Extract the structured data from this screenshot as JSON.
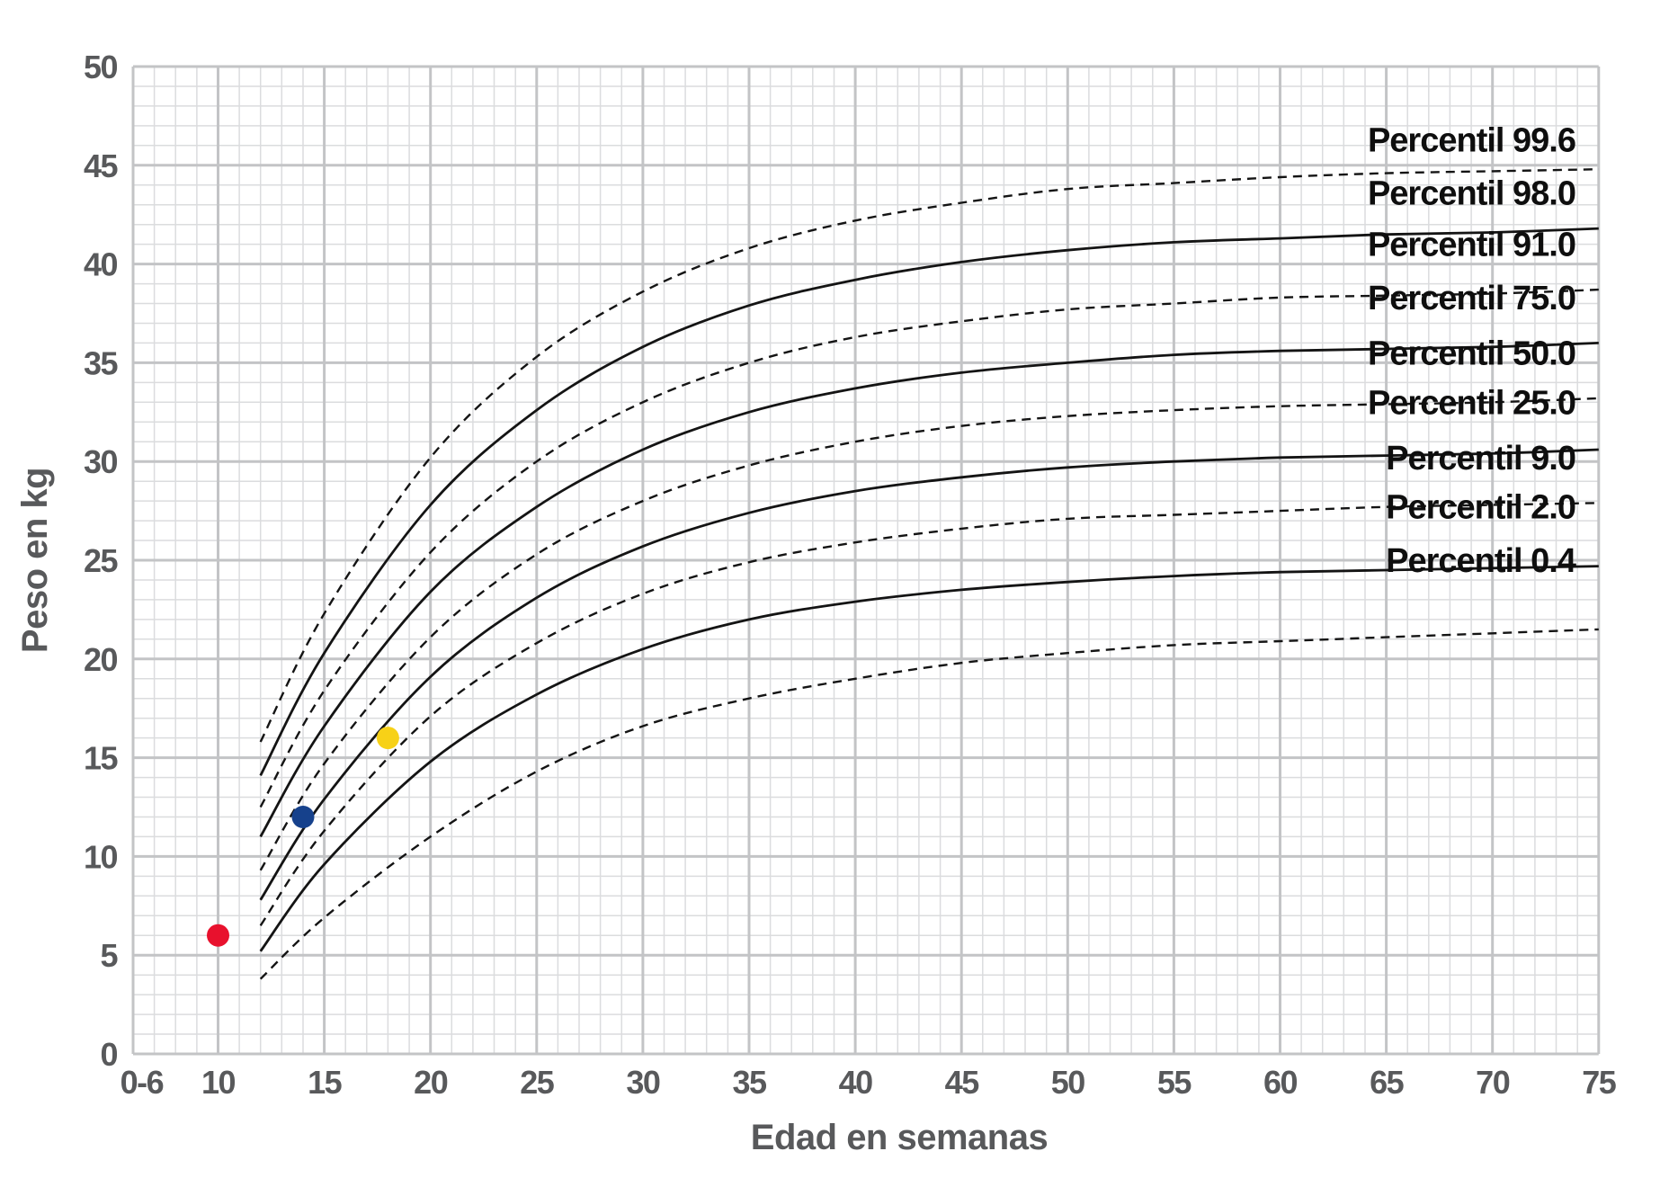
{
  "chart_data": {
    "type": "line",
    "title": "",
    "xlabel": "Edad en semanas",
    "ylabel": "Peso en kg",
    "xlim": [
      6,
      75
    ],
    "ylim": [
      0,
      50
    ],
    "grid": {
      "minor_step_weeks": 1,
      "minor_step_kg": 1,
      "major_step_weeks": 5,
      "major_step_kg": 5
    },
    "x_ticks": {
      "positions": [
        6.4,
        10,
        15,
        20,
        25,
        30,
        35,
        40,
        45,
        50,
        55,
        60,
        65,
        70,
        75
      ],
      "labels": [
        "0-6",
        "10",
        "15",
        "20",
        "25",
        "30",
        "35",
        "40",
        "45",
        "50",
        "55",
        "60",
        "65",
        "70",
        "75"
      ]
    },
    "y_ticks": [
      0,
      5,
      10,
      15,
      20,
      25,
      30,
      35,
      40,
      45,
      50
    ],
    "weeks": [
      12,
      15,
      20,
      25,
      30,
      35,
      40,
      45,
      50,
      55,
      60,
      65,
      70,
      75
    ],
    "series": [
      {
        "name": "Percentil 99.6",
        "percentile": 99.6,
        "line_style": "dashed",
        "label_y_kg": 46.3,
        "values": [
          15.8,
          22.3,
          30.2,
          35.3,
          38.6,
          40.8,
          42.2,
          43.1,
          43.8,
          44.1,
          44.4,
          44.6,
          44.7,
          44.8
        ]
      },
      {
        "name": "Percentil 98.0",
        "percentile": 98.0,
        "line_style": "solid",
        "label_y_kg": 43.6,
        "values": [
          14.1,
          20.3,
          27.8,
          32.6,
          35.8,
          37.9,
          39.2,
          40.1,
          40.7,
          41.1,
          41.3,
          41.5,
          41.6,
          41.8
        ]
      },
      {
        "name": "Percentil 91.0",
        "percentile": 91.0,
        "line_style": "dashed",
        "label_y_kg": 41.0,
        "values": [
          12.5,
          18.4,
          25.4,
          30.0,
          33.0,
          35.0,
          36.3,
          37.1,
          37.7,
          38.0,
          38.3,
          38.4,
          38.5,
          38.7
        ]
      },
      {
        "name": "Percentil 75.0",
        "percentile": 75.0,
        "line_style": "solid",
        "label_y_kg": 38.3,
        "values": [
          11.0,
          16.6,
          23.4,
          27.7,
          30.6,
          32.5,
          33.7,
          34.5,
          35.0,
          35.4,
          35.6,
          35.7,
          35.8,
          36.0
        ]
      },
      {
        "name": "Percentil 50.0",
        "percentile": 50.0,
        "line_style": "dashed",
        "label_y_kg": 35.5,
        "values": [
          9.3,
          14.7,
          21.1,
          25.3,
          28.0,
          29.8,
          31.0,
          31.8,
          32.3,
          32.6,
          32.8,
          32.9,
          33.0,
          33.2
        ]
      },
      {
        "name": "Percentil 25.0",
        "percentile": 25.0,
        "line_style": "solid",
        "label_y_kg": 33.0,
        "values": [
          7.8,
          12.9,
          19.1,
          23.1,
          25.7,
          27.4,
          28.5,
          29.2,
          29.7,
          30.0,
          30.2,
          30.3,
          30.4,
          30.6
        ]
      },
      {
        "name": "Percentil 9.0",
        "percentile": 9.0,
        "line_style": "dashed",
        "label_y_kg": 30.2,
        "values": [
          6.5,
          11.3,
          17.1,
          20.8,
          23.3,
          24.9,
          25.9,
          26.6,
          27.1,
          27.3,
          27.5,
          27.7,
          27.8,
          27.9
        ]
      },
      {
        "name": "Percentil 2.0",
        "percentile": 2.0,
        "line_style": "solid",
        "label_y_kg": 27.7,
        "values": [
          5.2,
          9.6,
          14.8,
          18.2,
          20.5,
          22.0,
          22.9,
          23.5,
          23.9,
          24.2,
          24.4,
          24.5,
          24.6,
          24.7
        ]
      },
      {
        "name": "Percentil 0.4",
        "percentile": 0.4,
        "line_style": "dashed",
        "label_y_kg": 25.0,
        "values": [
          3.8,
          6.9,
          11.0,
          14.3,
          16.6,
          18.0,
          19.0,
          19.8,
          20.3,
          20.7,
          20.9,
          21.1,
          21.3,
          21.5
        ]
      }
    ],
    "points": [
      {
        "name": "red",
        "week": 10,
        "kg": 6,
        "color": "#e8112d"
      },
      {
        "name": "blue",
        "week": 14,
        "kg": 12,
        "color": "#16418c"
      },
      {
        "name": "yellow",
        "week": 18,
        "kg": 16,
        "color": "#f7d117"
      }
    ],
    "colors": {
      "curve": "#141414",
      "grid_minor": "#dbdcde",
      "grid_major": "#c3c4c6",
      "axis_text": "#58595b",
      "label_text": "#0e0e0e"
    }
  }
}
